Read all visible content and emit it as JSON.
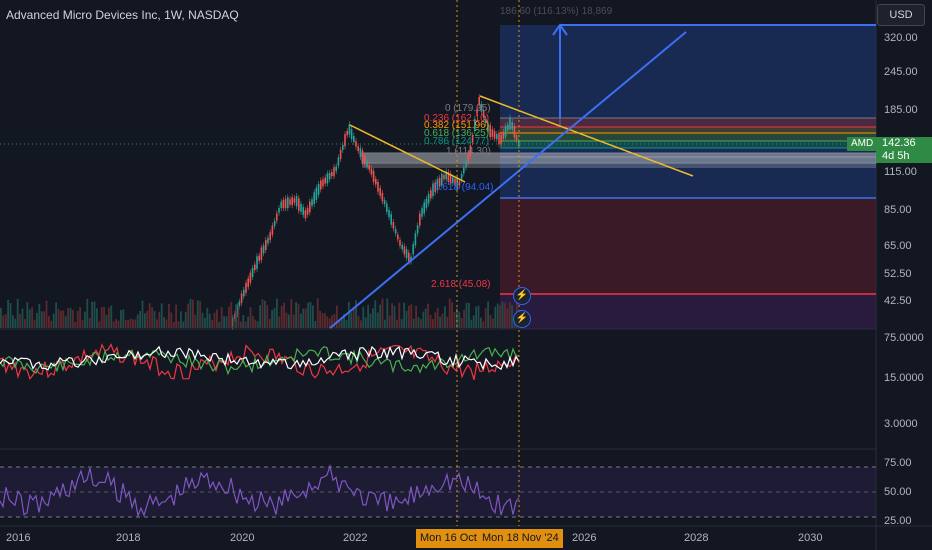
{
  "header": {
    "title": "Advanced Micro Devices Inc, 1W, NASDAQ",
    "top_info": "186.60 (116.13%) 18,869"
  },
  "price_axis": {
    "currency": "USD",
    "main_labels": [
      "320.00",
      "245.00",
      "185.00",
      "115.00",
      "85.00",
      "65.00",
      "52.50",
      "42.50"
    ],
    "osc1_labels": [
      "75.0000",
      "15.0000",
      "3.0000"
    ],
    "rsi_labels": [
      "75.00",
      "50.00",
      "25.00"
    ]
  },
  "last_price": {
    "symbol": "AMD",
    "price": "142.36",
    "countdown": "4d 5h"
  },
  "fib_labels": [
    {
      "text": "0 (179.95)",
      "color": "#787b86"
    },
    {
      "text": "0.236 (162.10)",
      "color": "#f23645"
    },
    {
      "text": "0.382 (151.96)",
      "color": "#ff9800"
    },
    {
      "text": "0.618 (136.25)",
      "color": "#4caf50"
    },
    {
      "text": "0.786 (124.77)",
      "color": "#089981"
    },
    {
      "text": "1 (114.30)",
      "color": "#787b86"
    },
    {
      "text": "1.618 (94.04)",
      "color": "#2962ff"
    },
    {
      "text": "2.618 (45.08)",
      "color": "#f23645"
    }
  ],
  "time_axis": {
    "years": [
      "2016",
      "2018",
      "2020",
      "2022",
      "2026",
      "2028",
      "2030"
    ],
    "crosshair_dates": [
      "Mon 16 Oct",
      "Mon 18 Nov '24"
    ]
  },
  "icons": [
    "lightning-alert-icon",
    "lightning-alert-icon"
  ]
}
